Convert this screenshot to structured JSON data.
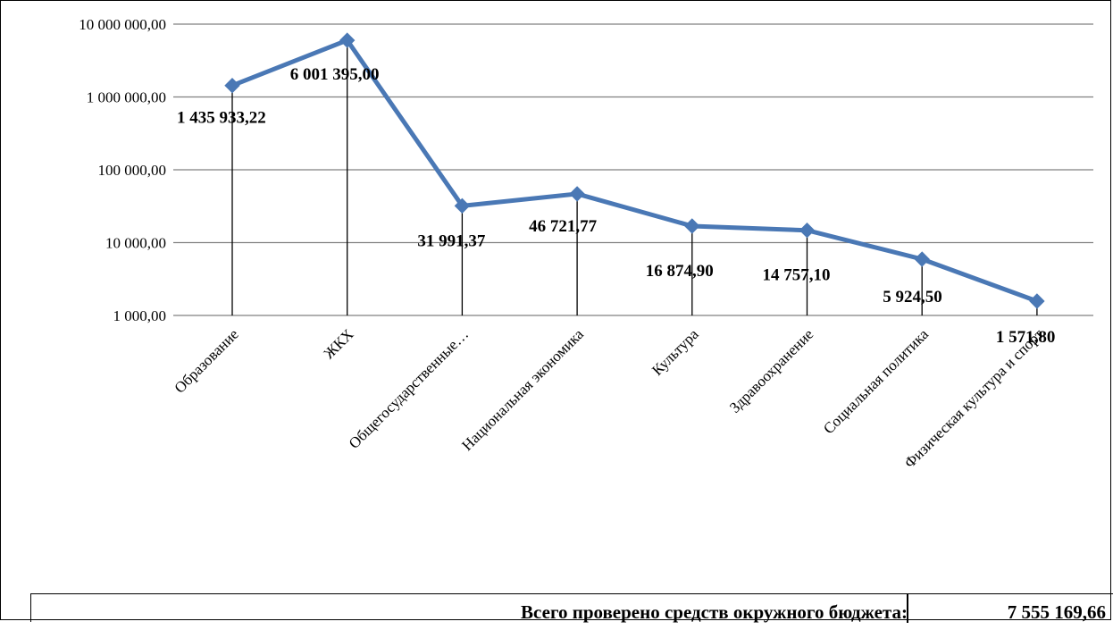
{
  "chart_data": {
    "type": "line",
    "y_scale": "log",
    "ylim": [
      1000,
      10000000
    ],
    "grid": true,
    "y_ticks": [
      {
        "value": 10000000,
        "label": "10 000 000,00"
      },
      {
        "value": 1000000,
        "label": "1 000 000,00"
      },
      {
        "value": 100000,
        "label": "100 000,00"
      },
      {
        "value": 10000,
        "label": "10 000,00"
      },
      {
        "value": 1000,
        "label": "1 000,00"
      }
    ],
    "categories": [
      "Образование",
      "ЖКХ",
      "Общегосударственные…",
      "Национальная экономика",
      "Культура",
      "Здравоохранение",
      "Социальная политика",
      "Физическая культура и спорт"
    ],
    "series": [
      {
        "values": [
          1435933.22,
          6001395.0,
          31991.37,
          46721.77,
          16874.9,
          14757.1,
          5924.5,
          1571.8
        ],
        "labels": [
          "1 435 933,22",
          "6 001 395,00",
          "31 991,37",
          "46 721,77",
          "16 874,90",
          "14 757,10",
          "5 924,50",
          "1 571,80"
        ],
        "color": "#4a78b5",
        "marker": "diamond"
      }
    ],
    "drop_lines": true,
    "drop_line_color": "#000000",
    "grid_color": "#808080"
  },
  "summary": {
    "label": "Всего проверено средств окружного бюджета:",
    "value": "7 555 169,66"
  }
}
